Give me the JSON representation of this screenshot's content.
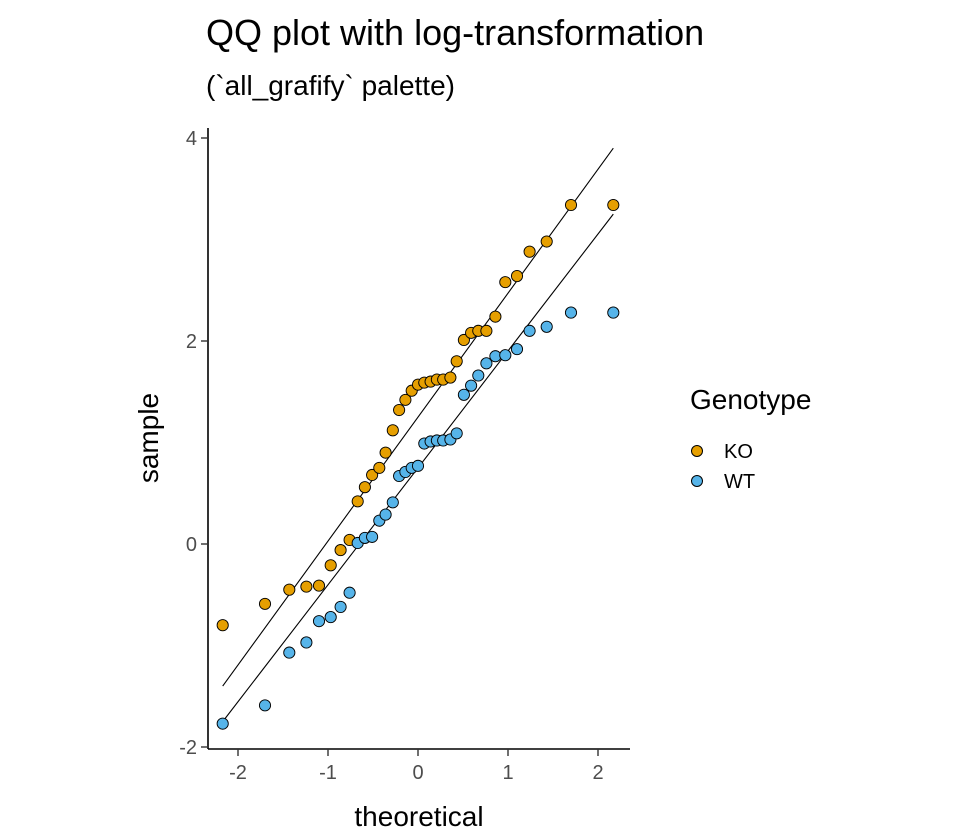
{
  "chart_data": {
    "type": "scatter",
    "title": "QQ plot with log-transformation",
    "subtitle": "(`all_grafify` palette)",
    "xlabel": "theoretical",
    "ylabel": "sample",
    "xlim": [
      -2.35,
      2.35
    ],
    "ylim": [
      -2.05,
      4.1
    ],
    "xticks": [
      -2,
      -1,
      0,
      1,
      2
    ],
    "yticks": [
      -2,
      0,
      2,
      4
    ],
    "grid": false,
    "legend": {
      "title": "Genotype",
      "position": "right",
      "entries": [
        "KO",
        "WT"
      ]
    },
    "series": [
      {
        "name": "KO",
        "color": "#E69F00",
        "points": [
          [
            -2.17,
            -0.8
          ],
          [
            -1.7,
            -0.59
          ],
          [
            -1.43,
            -0.45
          ],
          [
            -1.24,
            -0.42
          ],
          [
            -1.1,
            -0.41
          ],
          [
            -0.97,
            -0.21
          ],
          [
            -0.86,
            -0.06
          ],
          [
            -0.76,
            0.04
          ],
          [
            -0.67,
            0.42
          ],
          [
            -0.59,
            0.56
          ],
          [
            -0.51,
            0.68
          ],
          [
            -0.43,
            0.75
          ],
          [
            -0.36,
            0.9
          ],
          [
            -0.28,
            1.12
          ],
          [
            -0.21,
            1.32
          ],
          [
            -0.14,
            1.42
          ],
          [
            -0.07,
            1.51
          ],
          [
            0.0,
            1.57
          ],
          [
            0.07,
            1.59
          ],
          [
            0.14,
            1.6
          ],
          [
            0.21,
            1.62
          ],
          [
            0.28,
            1.62
          ],
          [
            0.36,
            1.64
          ],
          [
            0.43,
            1.8
          ],
          [
            0.51,
            2.01
          ],
          [
            0.59,
            2.08
          ],
          [
            0.67,
            2.1
          ],
          [
            0.76,
            2.1
          ],
          [
            0.86,
            2.24
          ],
          [
            0.97,
            2.58
          ],
          [
            1.1,
            2.64
          ],
          [
            1.24,
            2.88
          ],
          [
            1.43,
            2.98
          ],
          [
            1.7,
            3.34
          ],
          [
            2.17,
            3.34
          ]
        ],
        "line": [
          [
            -2.17,
            -1.4
          ],
          [
            2.17,
            3.9
          ]
        ]
      },
      {
        "name": "WT",
        "color": "#56B4E9",
        "points": [
          [
            -2.17,
            -1.77
          ],
          [
            -1.7,
            -1.59
          ],
          [
            -1.43,
            -1.07
          ],
          [
            -1.24,
            -0.97
          ],
          [
            -1.1,
            -0.76
          ],
          [
            -0.97,
            -0.72
          ],
          [
            -0.86,
            -0.62
          ],
          [
            -0.76,
            -0.48
          ],
          [
            -0.67,
            0.01
          ],
          [
            -0.59,
            0.06
          ],
          [
            -0.51,
            0.07
          ],
          [
            -0.43,
            0.23
          ],
          [
            -0.36,
            0.29
          ],
          [
            -0.28,
            0.41
          ],
          [
            -0.21,
            0.67
          ],
          [
            -0.14,
            0.71
          ],
          [
            -0.07,
            0.75
          ],
          [
            0.0,
            0.77
          ],
          [
            0.07,
            0.99
          ],
          [
            0.14,
            1.01
          ],
          [
            0.21,
            1.02
          ],
          [
            0.28,
            1.02
          ],
          [
            0.36,
            1.03
          ],
          [
            0.43,
            1.09
          ],
          [
            0.51,
            1.47
          ],
          [
            0.59,
            1.56
          ],
          [
            0.67,
            1.66
          ],
          [
            0.76,
            1.78
          ],
          [
            0.86,
            1.85
          ],
          [
            0.97,
            1.86
          ],
          [
            1.1,
            1.92
          ],
          [
            1.24,
            2.1
          ],
          [
            1.43,
            2.14
          ],
          [
            1.7,
            2.28
          ],
          [
            2.17,
            2.28
          ]
        ],
        "line": [
          [
            -2.17,
            -1.75
          ],
          [
            2.17,
            3.25
          ]
        ]
      }
    ]
  }
}
